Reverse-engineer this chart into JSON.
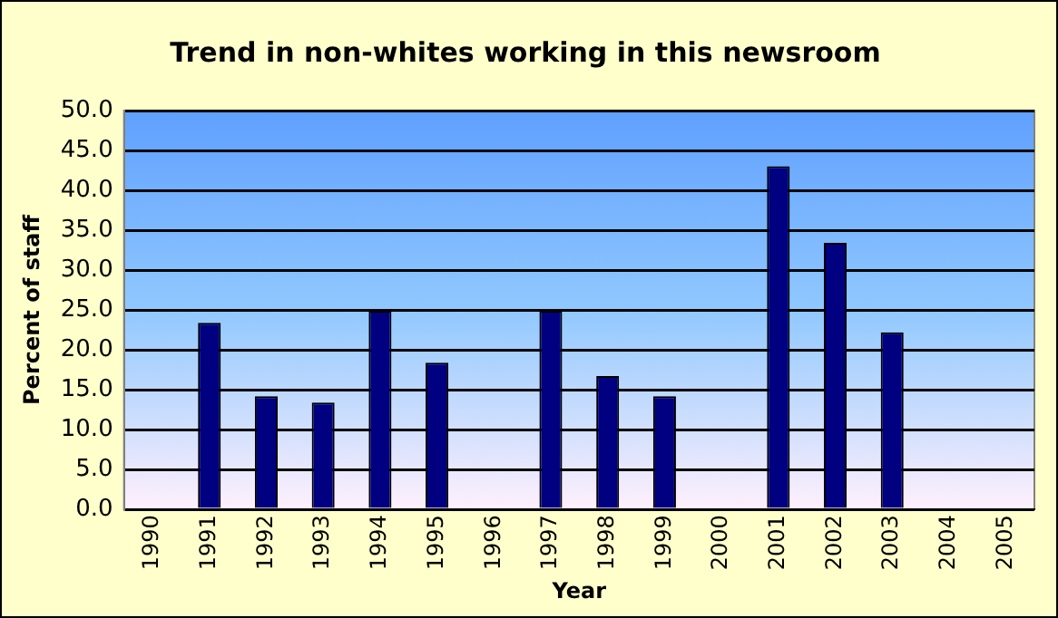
{
  "chart_data": {
    "type": "bar",
    "title": "Trend in non-whites working in this newsroom",
    "xlabel": "Year",
    "ylabel": "Percent of staff",
    "categories": [
      "1990",
      "1991",
      "1992",
      "1993",
      "1994",
      "1995",
      "1996",
      "1997",
      "1998",
      "1999",
      "2000",
      "2001",
      "2002",
      "2003",
      "2004",
      "2005"
    ],
    "values": [
      null,
      23.4,
      14.2,
      13.4,
      24.9,
      18.4,
      null,
      24.9,
      16.7,
      14.2,
      null,
      43.0,
      33.4,
      22.2,
      null,
      null
    ],
    "color": "#000080",
    "ylim": [
      0,
      50
    ],
    "yticks": [
      {
        "value": 0,
        "label": "0.0"
      },
      {
        "value": 5,
        "label": "5.0"
      },
      {
        "value": 10,
        "label": "10.0"
      },
      {
        "value": 15,
        "label": "15.0"
      },
      {
        "value": 20,
        "label": "20.0"
      },
      {
        "value": 25,
        "label": "25.0"
      },
      {
        "value": 30,
        "label": "30.0"
      },
      {
        "value": 35,
        "label": "35.0"
      },
      {
        "value": 40,
        "label": "40.0"
      },
      {
        "value": 45,
        "label": "45.0"
      },
      {
        "value": 50,
        "label": "50.0"
      }
    ],
    "grid": "y",
    "legend": false
  }
}
